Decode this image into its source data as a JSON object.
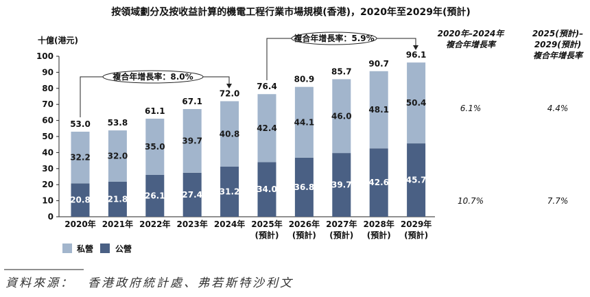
{
  "chart_data": {
    "type": "bar",
    "stacked": true,
    "title": "按領域劃分及按收益計算的機電工程行業市場規模(香港)，2020年至2029年(預計)",
    "xlabel": "",
    "ylabel": "十億(港元)",
    "ylim": [
      0,
      100
    ],
    "yticks": [
      0,
      10,
      20,
      30,
      40,
      50,
      60,
      70,
      80,
      90,
      100
    ],
    "grid": false,
    "categories": [
      "2020年",
      "2021年",
      "2022年",
      "2023年",
      "2024年",
      "2025年",
      "2026年",
      "2027年",
      "2028年",
      "2029年"
    ],
    "projection_note": "(預計)",
    "projected_from_index": 5,
    "series": [
      {
        "name": "公營",
        "color": "#4A6084",
        "values": [
          20.8,
          21.8,
          26.1,
          27.4,
          31.2,
          34.0,
          36.8,
          39.7,
          42.6,
          45.7
        ]
      },
      {
        "name": "私營",
        "color": "#A2B5CC",
        "values": [
          32.2,
          32.0,
          35.0,
          39.7,
          40.8,
          42.4,
          44.1,
          46.0,
          48.1,
          50.4
        ]
      }
    ],
    "totals": [
      53.0,
      53.8,
      61.1,
      67.1,
      72.0,
      76.4,
      80.9,
      85.7,
      90.7,
      96.1
    ],
    "legend_position": "bottom-left",
    "annotations": [
      {
        "label": "複合年增長率：8.0%",
        "from_index": 0,
        "to_index": 4
      },
      {
        "label": "複合年增長率：5.9%",
        "from_index": 5,
        "to_index": 9
      }
    ]
  },
  "cagr_table": {
    "headers": [
      [
        "2020年–2024年",
        "複合年增長率"
      ],
      [
        "2025(預計)–",
        "2029(預計)",
        "複合年增長率"
      ]
    ],
    "rows": [
      [
        "6.1%",
        "4.4%"
      ],
      [
        "10.7%",
        "7.7%"
      ]
    ]
  },
  "source": {
    "label": "資料來源：",
    "text": "香港政府統計處、弗若斯特沙利文"
  }
}
